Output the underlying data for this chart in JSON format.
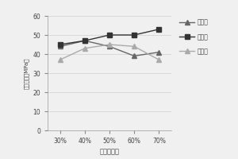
{
  "x_labels": [
    "30%",
    "40%",
    "50%",
    "60%",
    "70%"
  ],
  "x_values": [
    30,
    40,
    50,
    60,
    70
  ],
  "series": [
    {
      "name": "东含厂",
      "values": [
        44,
        47,
        44,
        39,
        41
      ],
      "color": "#666666",
      "marker": "^",
      "linestyle": "-",
      "markersize": 4
    },
    {
      "name": "西含厂",
      "values": [
        45,
        47,
        50,
        50,
        53
      ],
      "color": "#333333",
      "marker": "s",
      "linestyle": "-",
      "markersize": 4
    },
    {
      "name": "汪良含",
      "values": [
        37,
        43,
        45,
        44,
        37
      ],
      "color": "#aaaaaa",
      "marker": "^",
      "linestyle": "-",
      "markersize": 4
    }
  ],
  "ylabel": "抗压强度（MPa）",
  "xlabel": "煎矸石含量",
  "ylim": [
    0,
    60
  ],
  "yticks": [
    0,
    10,
    20,
    30,
    40,
    50,
    60
  ],
  "background_color": "#f0f0f0",
  "plot_bg": "#f0f0f0",
  "grid_color": "#d0d0d0",
  "linewidth": 1.0
}
